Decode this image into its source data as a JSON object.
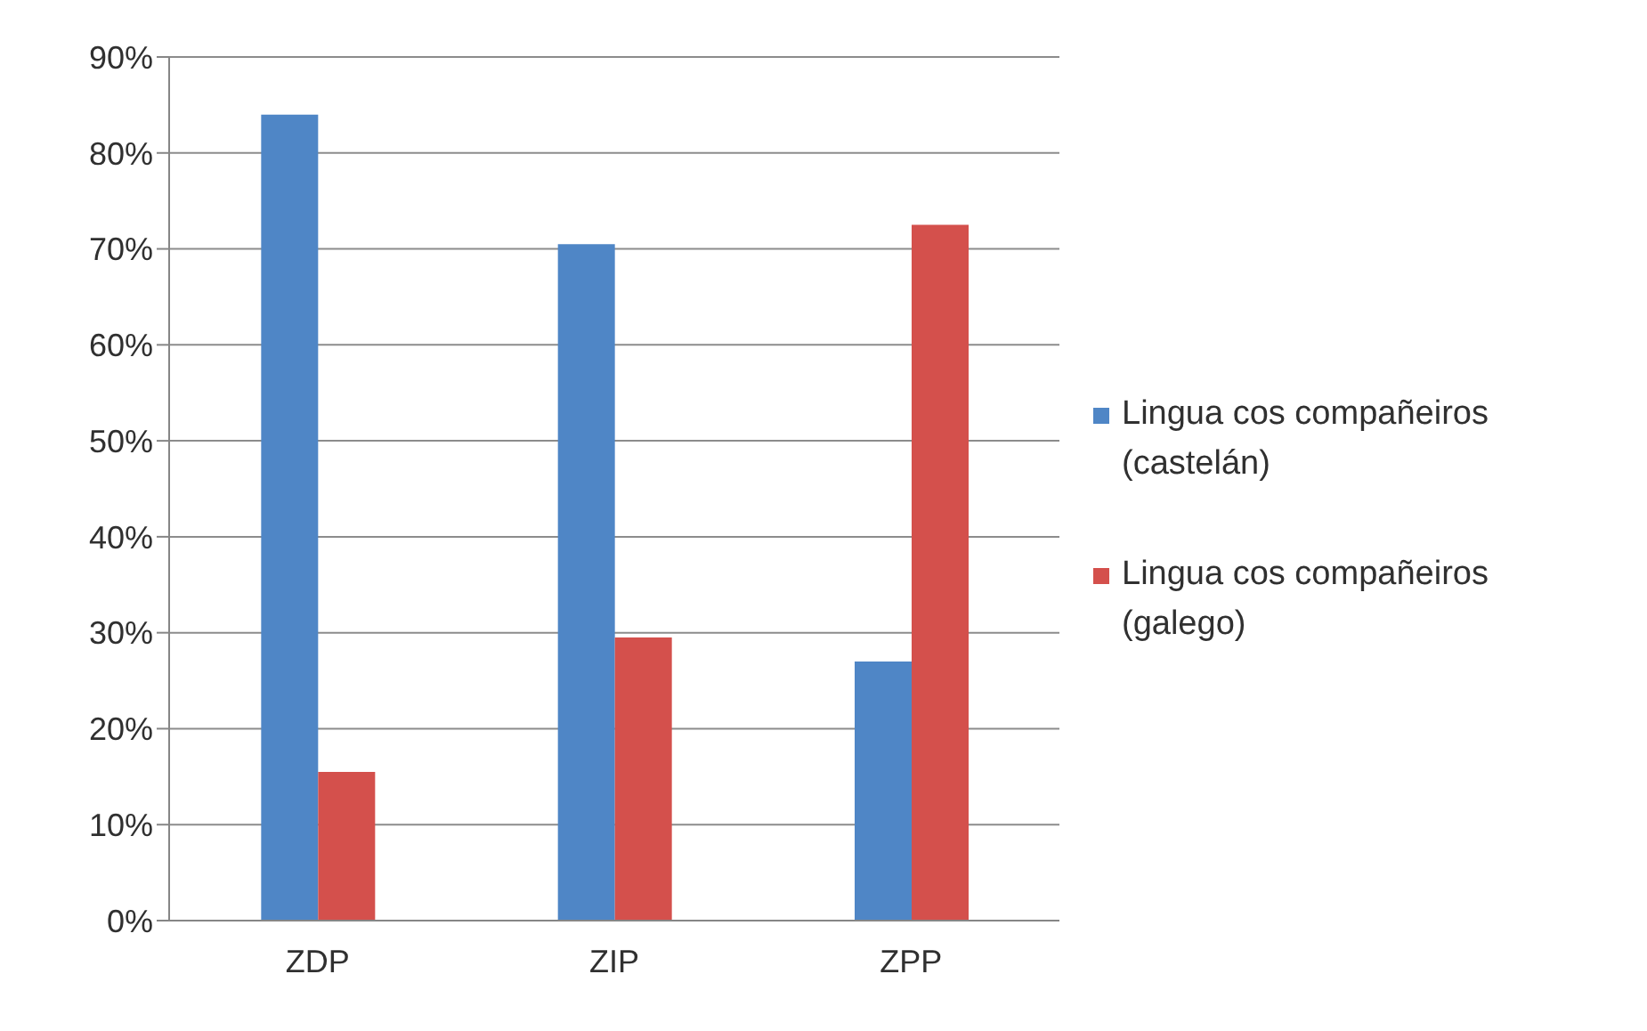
{
  "chart_data": {
    "type": "bar",
    "categories": [
      "ZDP",
      "ZIP",
      "ZPP"
    ],
    "series": [
      {
        "name": "Lingua cos compañeiros (castelán)",
        "color": "#4f86c6",
        "values": [
          84,
          70.5,
          27
        ]
      },
      {
        "name": "Lingua cos compañeiros (galego)",
        "color": "#d4504c",
        "values": [
          15.5,
          29.5,
          72.5
        ]
      }
    ],
    "ylim": [
      0,
      90
    ],
    "yticks": [
      {
        "value": 0,
        "label": "0%"
      },
      {
        "value": 10,
        "label": "10%"
      },
      {
        "value": 20,
        "label": "20%"
      },
      {
        "value": 30,
        "label": "30%"
      },
      {
        "value": 40,
        "label": "40%"
      },
      {
        "value": 50,
        "label": "50%"
      },
      {
        "value": 60,
        "label": "60%"
      },
      {
        "value": 70,
        "label": "70%"
      },
      {
        "value": 80,
        "label": "80%"
      },
      {
        "value": 90,
        "label": "90%"
      }
    ],
    "grid": "y",
    "legend": "right"
  }
}
